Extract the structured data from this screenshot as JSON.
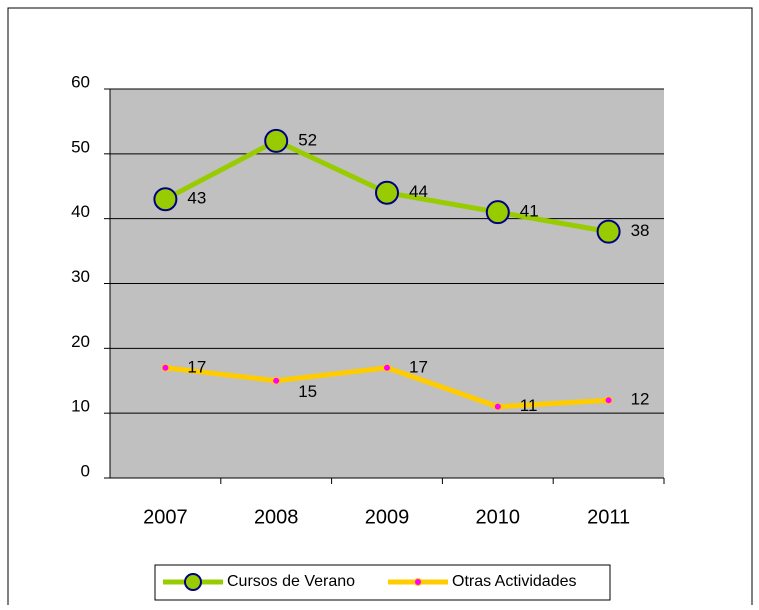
{
  "chart_data": {
    "type": "line",
    "categories": [
      "2007",
      "2008",
      "2009",
      "2010",
      "2011"
    ],
    "series": [
      {
        "name": "Cursos de Verano",
        "color": "#99cc00",
        "values": [
          43,
          52,
          44,
          41,
          38
        ]
      },
      {
        "name": "Otras Actividades",
        "color": "#ffcc00",
        "values": [
          17,
          15,
          17,
          11,
          12
        ]
      }
    ],
    "ylim": [
      0,
      60
    ],
    "yticks": [
      0,
      10,
      20,
      30,
      40,
      50,
      60
    ],
    "grid": true,
    "legend": "bottom"
  }
}
